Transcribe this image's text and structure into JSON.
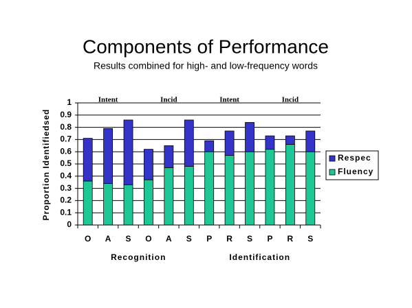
{
  "chart_data": {
    "type": "bar",
    "stacked": true,
    "title": "Components of Performance",
    "subtitle": "Results combined for high- and low-frequency words",
    "y_label": "Proportion Identifiedsed",
    "categories": [
      "O",
      "A",
      "S",
      "O",
      "A",
      "S",
      "P",
      "R",
      "S",
      "P",
      "R",
      "S"
    ],
    "series": [
      {
        "name": "Fluency",
        "color": "#1ec896",
        "values": [
          0.36,
          0.34,
          0.33,
          0.37,
          0.47,
          0.48,
          0.6,
          0.57,
          0.6,
          0.62,
          0.66,
          0.6
        ]
      },
      {
        "name": "Respec",
        "color": "#3434c8",
        "values": [
          0.35,
          0.45,
          0.53,
          0.25,
          0.18,
          0.38,
          0.09,
          0.2,
          0.24,
          0.11,
          0.07,
          0.17
        ]
      }
    ],
    "annotations": [
      "Intent",
      "Incid",
      "Intent",
      "Incid"
    ],
    "groups": [
      "Recognition",
      "Identification"
    ],
    "ylim": [
      0,
      1
    ],
    "yticks": [
      0,
      0.1,
      0.2,
      0.3,
      0.4,
      0.5,
      0.6,
      0.7,
      0.8,
      0.9,
      1
    ],
    "grid": true,
    "legend": "right"
  }
}
